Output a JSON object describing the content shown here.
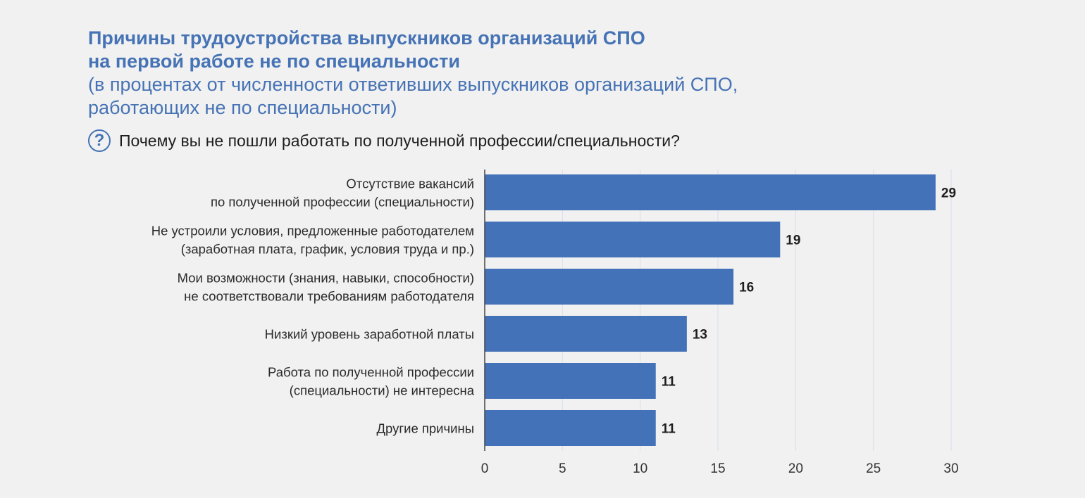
{
  "header": {
    "title_line1": "Причины трудоустройства выпускников организаций СПО",
    "title_line2": "на первой работе не по специальности",
    "subtitle_line1": "(в процентах от численности ответивших выпускников организаций СПО,",
    "subtitle_line2": "работающих не по специальности)"
  },
  "question": {
    "icon": "question-circle-icon",
    "text": "Почему вы не пошли работать по полученной профессии/специальности?"
  },
  "colors": {
    "bar": "#4372b8",
    "accent": "#4673b5",
    "grid": "#d8e0ea",
    "axis": "#444444",
    "text": "#1e1e1e",
    "background": "#f1f1f1"
  },
  "chart_data": {
    "type": "bar",
    "orientation": "horizontal",
    "categories": [
      [
        "Отсутствие вакансий",
        "по полученной профессии (специальности)"
      ],
      [
        "Не устроили условия, предложенные работодателем",
        "(заработная плата, график, условия труда и пр.)"
      ],
      [
        "Мои возможности (знания, навыки, способности)",
        "не соответствовали требованиям работодателя"
      ],
      [
        "Низкий уровень заработной платы"
      ],
      [
        "Работа по полученной профессии",
        "(специальности) не интересна"
      ],
      [
        "Другие причины"
      ]
    ],
    "values": [
      29,
      19,
      16,
      13,
      11,
      11
    ],
    "data_labels": [
      "29",
      "19",
      "16",
      "13",
      "11",
      "11"
    ],
    "xlim": [
      0,
      30
    ],
    "xticks": [
      0,
      5,
      10,
      15,
      20,
      25,
      30
    ],
    "grid": true,
    "legend": "none",
    "xlabel": "",
    "ylabel": ""
  }
}
